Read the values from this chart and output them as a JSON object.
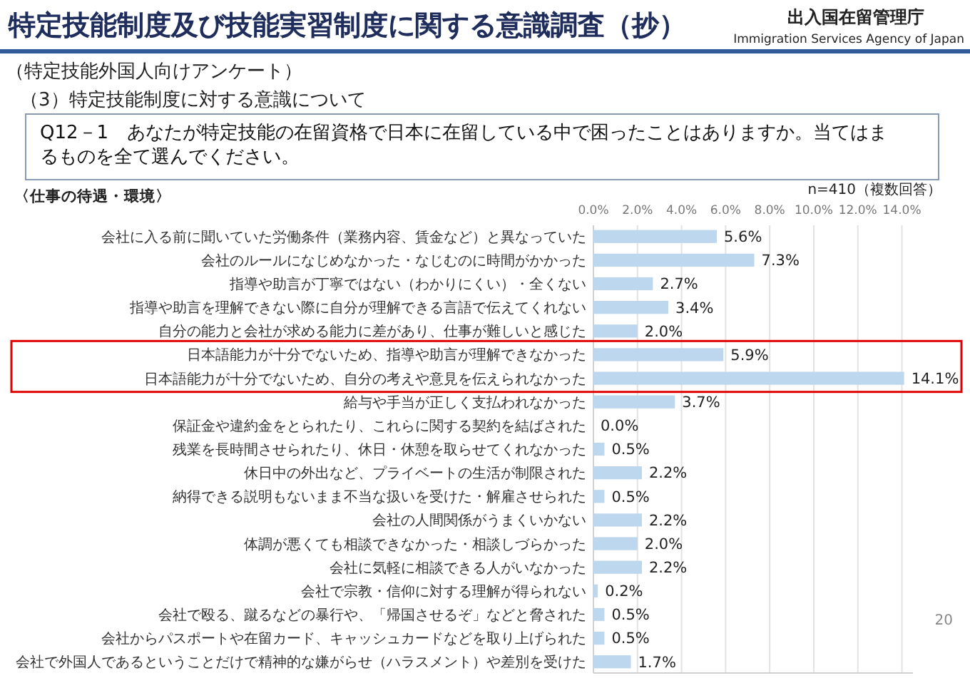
{
  "chart_data": {
    "type": "bar",
    "orientation": "horizontal",
    "title": "特定技能制度及び技能実習制度に関する意識調査（抄）",
    "subtitle": "（特定技能外国人向けアンケート）",
    "categories": [
      "会社に入る前に聞いていた労働条件（業務内容、賃金など）と異なっていた",
      "会社のルールになじめなかった・なじむのに時間がかかった",
      "指導や助言が丁寧ではない（わかりにくい）・全くない",
      "指導や助言を理解できない際に自分が理解できる言語で伝えてくれない",
      "自分の能力と会社が求める能力に差があり、仕事が難しいと感じた",
      "日本語能力が十分でないため、指導や助言が理解できなかった",
      "日本語能力が十分でないため、自分の考えや意見を伝えられなかった",
      "給与や手当が正しく支払われなかった",
      "保証金や違約金をとられたり、これらに関する契約を結ばされた",
      "残業を長時間させられたり、休日・休憩を取らせてくれなかった",
      "休日中の外出など、プライベートの生活が制限された",
      "納得できる説明もないまま不当な扱いを受けた・解雇させられた",
      "会社の人間関係がうまくいかない",
      "体調が悪くても相談できなかった・相談しづらかった",
      "会社に気軽に相談できる人がいなかった",
      "会社で宗教・信仰に対する理解が得られない",
      "会社で殴る、蹴るなどの暴行や、「帰国させるぞ」などと脅された",
      "会社からパスポートや在留カード、キャッシュカードなどを取り上げられた",
      "会社で外国人であるということだけで精神的な嫌がらせ（ハラスメント）や差別を受けた"
    ],
    "values": [
      5.6,
      7.3,
      2.7,
      3.4,
      2.0,
      5.9,
      14.1,
      3.7,
      0.0,
      0.5,
      2.2,
      0.5,
      2.2,
      2.0,
      2.2,
      0.2,
      0.5,
      0.5,
      1.7
    ],
    "value_labels": [
      "5.6%",
      "7.3%",
      "2.7%",
      "3.4%",
      "2.0%",
      "5.9%",
      "14.1%",
      "3.7%",
      "0.0%",
      "0.5%",
      "2.2%",
      "0.5%",
      "2.2%",
      "2.0%",
      "2.2%",
      "0.2%",
      "0.5%",
      "0.5%",
      "1.7%"
    ],
    "color": "#bdd7ee",
    "xlim": [
      0,
      14.5
    ],
    "xticks": [
      {
        "value": 0,
        "label": "0.0%"
      },
      {
        "value": 2,
        "label": "2.0%"
      },
      {
        "value": 4,
        "label": "4.0%"
      },
      {
        "value": 6,
        "label": "6.0%"
      },
      {
        "value": 8,
        "label": "8.0%"
      },
      {
        "value": 10,
        "label": "10.0%"
      },
      {
        "value": 12,
        "label": "12.0%"
      },
      {
        "value": 14,
        "label": "14.0%"
      }
    ],
    "grid": "x",
    "annotations": [
      "出入国在留管理庁",
      "Immigration Services Agency of Japan",
      "（3）特定技能制度に対する意識について",
      "Q12－1　あなたが特定技能の在留資格で日本に在留している中で困ったことはありますか。当てはまるものを全て選んでください。",
      "〈仕事の待遇・環境〉",
      "n=410（複数回答）",
      "20"
    ]
  }
}
